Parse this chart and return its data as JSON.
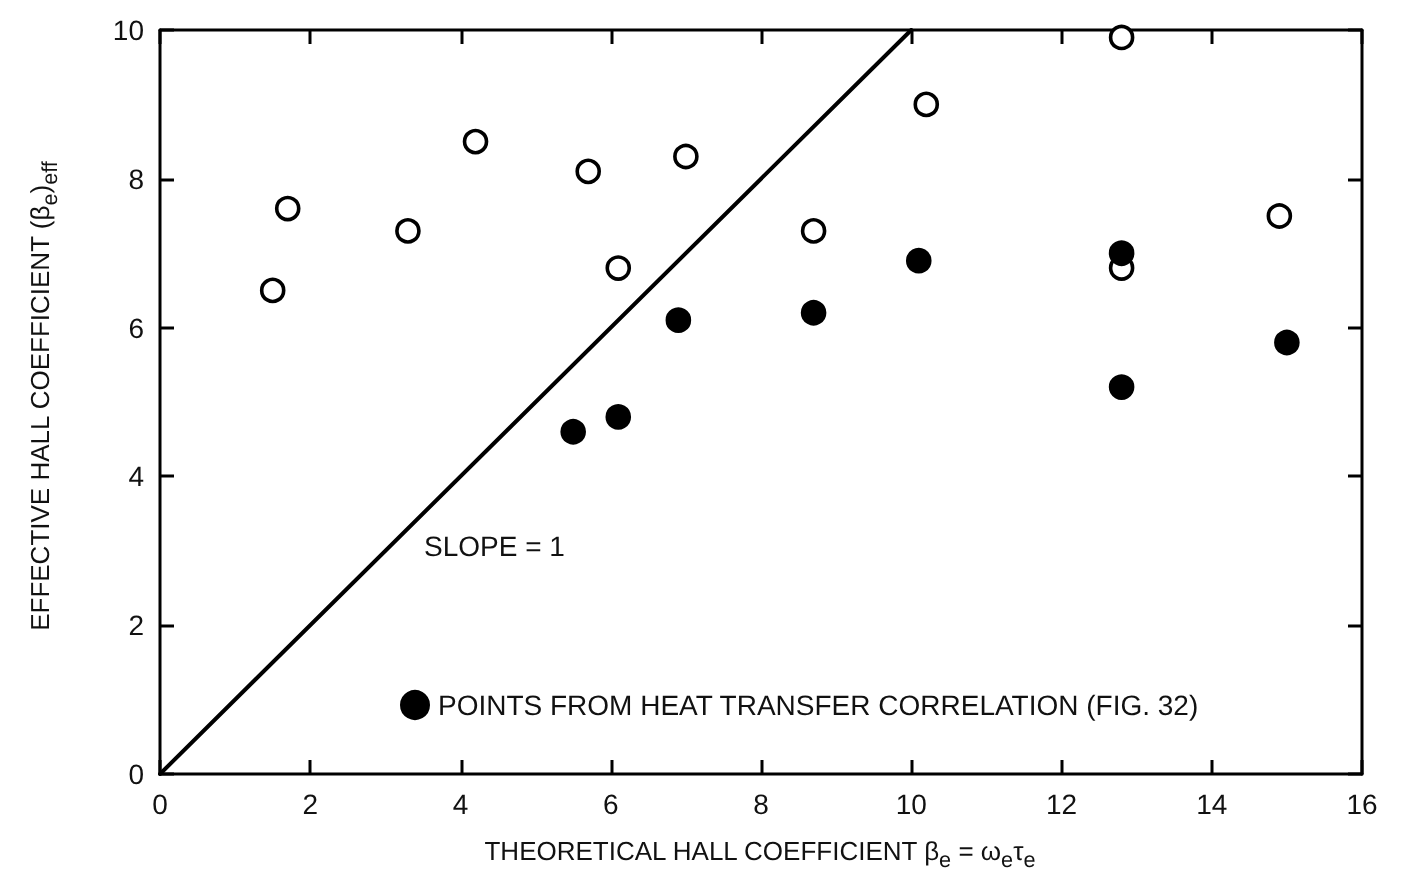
{
  "chart_data": {
    "type": "scatter",
    "xlabel": "THEORETICAL HALL COEFFICIENT β$_{e}$ = ω$_{e}$τ$_{e}$",
    "ylabel": "EFFECTIVE HALL COEFFICIENT (β$_{e}$)$_{eff}$",
    "xlim": [
      0,
      16
    ],
    "xticks": [
      0,
      2,
      4,
      6,
      8,
      10,
      12,
      14,
      16
    ],
    "ylim": [
      0,
      10
    ],
    "yticks": [
      0,
      2,
      4,
      6,
      8,
      10
    ],
    "grid": false,
    "legend": "bottom right",
    "marker": "circle",
    "annotations": [
      "SLOPE = 1"
    ],
    "series": [
      {
        "color": "#ffffff",
        "x": [
          1.5,
          1.7,
          3.3,
          4.2,
          5.7,
          6.1,
          7.0,
          8.7,
          10.2,
          12.8,
          12.8,
          14.9
        ],
        "values": [
          6.5,
          7.6,
          7.3,
          8.5,
          8.1,
          6.8,
          8.3,
          7.3,
          9.0,
          9.9,
          6.8,
          7.5
        ]
      },
      {
        "name": "POINTS FROM HEAT TRANSFER CORRELATION (FIG. 32)",
        "color": "#000000",
        "x": [
          5.5,
          6.1,
          6.9,
          8.7,
          10.1,
          12.8,
          12.8,
          15.0
        ],
        "values": [
          4.6,
          4.8,
          6.1,
          6.2,
          6.9,
          7.0,
          5.2,
          5.8
        ]
      },
      {
        "type": "line",
        "color": "#000000",
        "marker": "none",
        "x": [
          0,
          10
        ],
        "values": [
          0,
          10
        ]
      }
    ]
  }
}
